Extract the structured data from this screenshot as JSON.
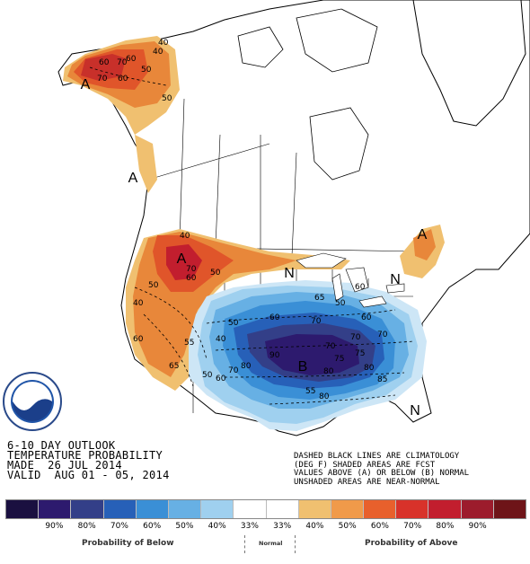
{
  "title_lines": [
    "6-10 DAY OUTLOOK",
    "TEMPERATURE PROBABILITY",
    "MADE  26 JUL 2014",
    "VALID  AUG 01 - 05, 2014"
  ],
  "note_lines": [
    "DASHED BLACK LINES ARE CLIMATOLOGY",
    "(DEG F) SHADED AREAS ARE FCST",
    "VALUES ABOVE (A) OR BELOW (B) NORMAL",
    "UNSHADED AREAS ARE NEAR-NORMAL"
  ],
  "logo": {
    "text": "NOAA",
    "ring_text": "NATIONAL OCEANIC AND ATMOSPHERIC ADMINISTRATION · U.S. DEPARTMENT OF COMMERCE"
  },
  "region_markers": [
    {
      "id": "alaska",
      "letter": "A"
    },
    {
      "id": "se-alaska",
      "letter": "A"
    },
    {
      "id": "northwest",
      "letter": "A"
    },
    {
      "id": "new-england",
      "letter": "A"
    },
    {
      "id": "central",
      "letter": "B"
    },
    {
      "id": "n-lakes",
      "letter": "N"
    },
    {
      "id": "n-east",
      "letter": "N"
    },
    {
      "id": "n-florida",
      "letter": "N"
    }
  ],
  "contour_labels": [
    "60",
    "70",
    "60",
    "50",
    "40",
    "70",
    "60",
    "50",
    "40",
    "60",
    "70",
    "50",
    "40",
    "60",
    "50",
    "40",
    "50",
    "60",
    "70",
    "80",
    "50",
    "60",
    "70",
    "80",
    "90",
    "40",
    "50",
    "60",
    "70",
    "55",
    "65",
    "70",
    "75",
    "80",
    "55",
    "60",
    "65",
    "70",
    "75",
    "80",
    "85"
  ],
  "legend": {
    "below_label": "Probability of Below",
    "normal_label": "Normal",
    "above_label": "Probability of Above",
    "swatches": [
      "#1a1040",
      "#2d1a6e",
      "#333f88",
      "#2760b8",
      "#3a8fd6",
      "#67b0e4",
      "#9fd0ef",
      "#ffffff",
      "#ffffff",
      "#f0c070",
      "#f09a4a",
      "#e8602c",
      "#d8322a",
      "#c21e2e",
      "#9c1c2c",
      "#6e1418"
    ],
    "ticks": [
      "90%",
      "80%",
      "70%",
      "60%",
      "50%",
      "40%",
      "33%",
      "33%",
      "40%",
      "50%",
      "60%",
      "70%",
      "80%",
      "90%"
    ]
  }
}
